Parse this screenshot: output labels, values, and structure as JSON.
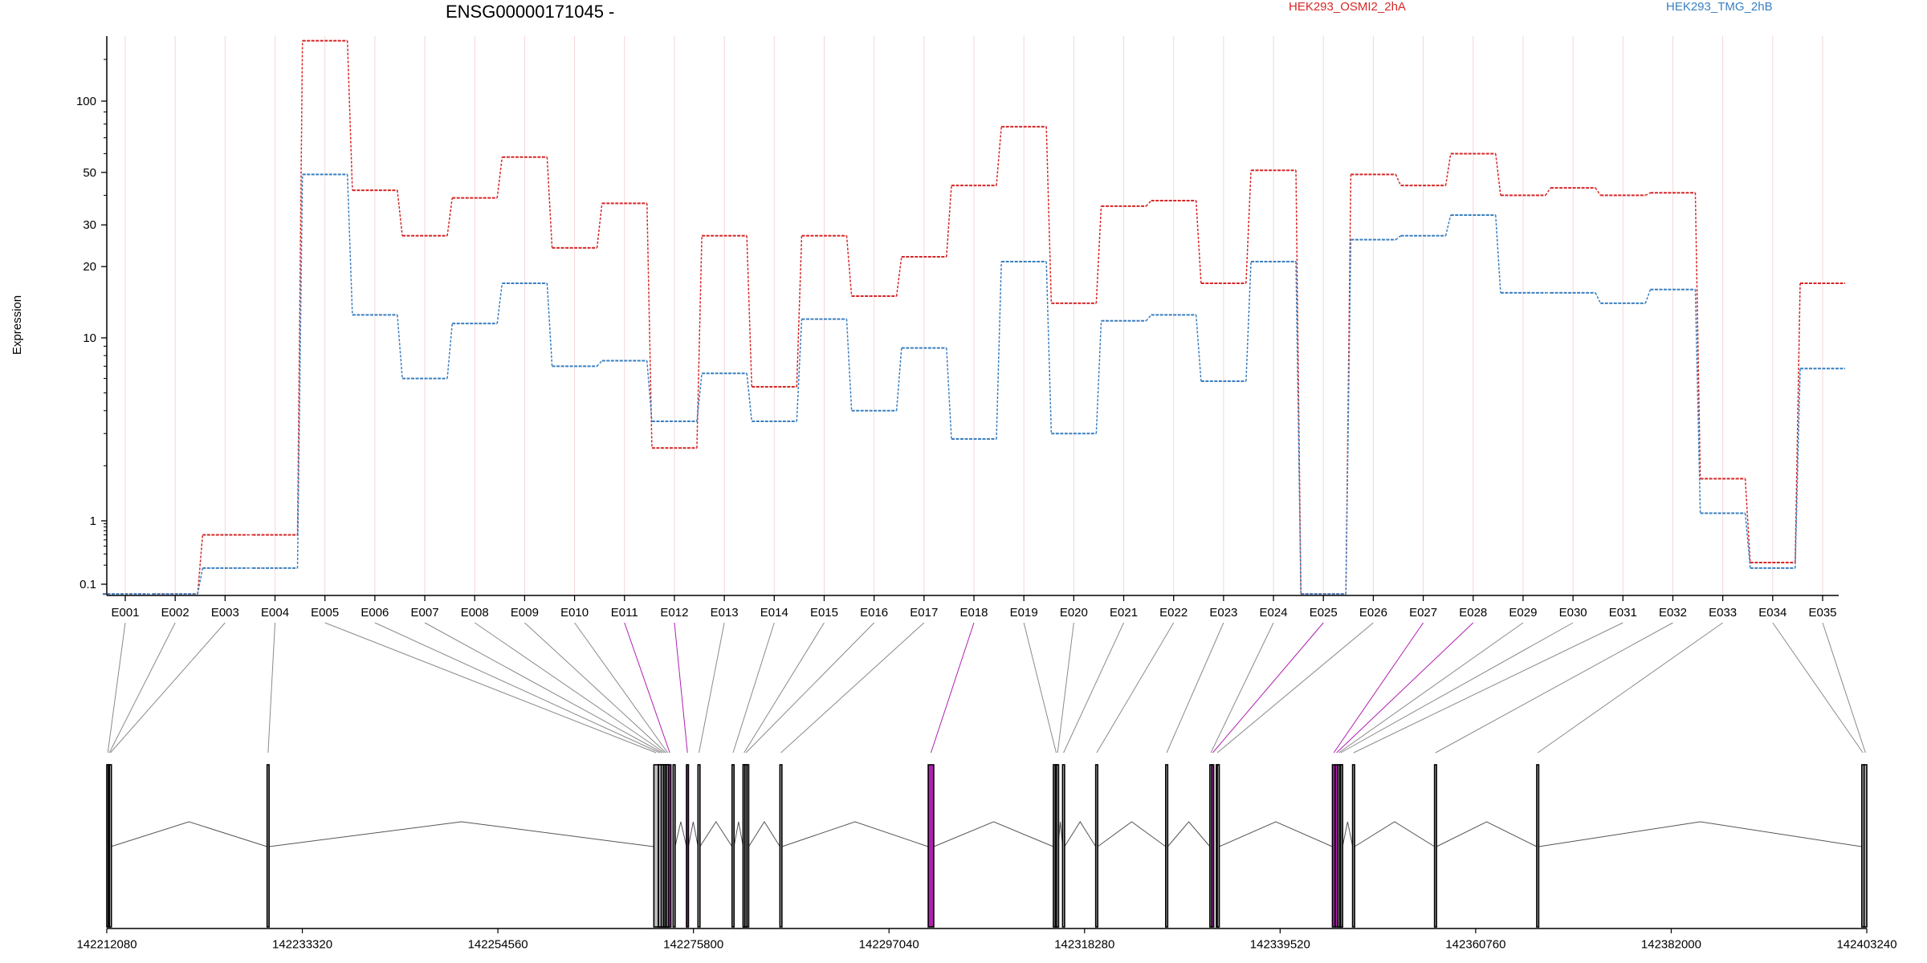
{
  "chart_data": {
    "type": "line",
    "title": "ENSG00000171045 -",
    "ylabel": "Expression",
    "yscale": "log",
    "yticks": [
      "0.1",
      "1",
      "10",
      "20",
      "30",
      "50",
      "100"
    ],
    "categories": [
      "E001",
      "E002",
      "E003",
      "E004",
      "E005",
      "E006",
      "E007",
      "E008",
      "E009",
      "E010",
      "E011",
      "E012",
      "E013",
      "E014",
      "E015",
      "E016",
      "E017",
      "E018",
      "E019",
      "E020",
      "E021",
      "E022",
      "E023",
      "E024",
      "E025",
      "E026",
      "E027",
      "E028",
      "E029",
      "E030",
      "E031",
      "E032",
      "E033",
      "E034",
      "E035"
    ],
    "series": [
      {
        "name": "HEK293_OSMI2_2hA",
        "color": "#d62728",
        "values": [
          0.07,
          0.07,
          0.6,
          0.6,
          180,
          42,
          27,
          39,
          58,
          24,
          37,
          2.5,
          27,
          5.4,
          27,
          15,
          22,
          44,
          78,
          14,
          36,
          38,
          17,
          51,
          0.07,
          49,
          44,
          60,
          40,
          43,
          40,
          41,
          1.7,
          0.22,
          17
        ]
      },
      {
        "name": "HEK293_TMG_2hB",
        "color": "#3a7fc0",
        "values": [
          0.07,
          0.07,
          0.18,
          0.18,
          49,
          12.5,
          6,
          11.5,
          17,
          7,
          7.5,
          3.5,
          6.4,
          3.5,
          12,
          4,
          8.8,
          2.8,
          21,
          3,
          11.8,
          12.5,
          5.8,
          21,
          0.07,
          26,
          27,
          33,
          15.5,
          15.5,
          14,
          16,
          1.1,
          0.18,
          6.8
        ]
      }
    ],
    "genomic_axis": {
      "tick_labels": [
        "142212080",
        "142233320",
        "142254560",
        "142275800",
        "142297040",
        "142318280",
        "142339520",
        "142360760",
        "142382000",
        "142403240"
      ],
      "start": 142212080,
      "end": 142403240
    },
    "exons": [
      {
        "id": "E001",
        "start": 142212080,
        "end": 142212300,
        "highlight": false
      },
      {
        "id": "E002",
        "start": 142212300,
        "end": 142212420,
        "highlight": false
      },
      {
        "id": "E003",
        "start": 142212420,
        "end": 142212520,
        "highlight": false
      },
      {
        "id": "E004",
        "start": 142229500,
        "end": 142229700,
        "highlight": false
      },
      {
        "id": "E005",
        "start": 142271500,
        "end": 142272000,
        "highlight": false
      },
      {
        "id": "E006",
        "start": 142272000,
        "end": 142272300,
        "highlight": false
      },
      {
        "id": "E007",
        "start": 142272300,
        "end": 142272550,
        "highlight": false
      },
      {
        "id": "E008",
        "start": 142272550,
        "end": 142272750,
        "highlight": false
      },
      {
        "id": "E009",
        "start": 142272750,
        "end": 142272900,
        "highlight": false
      },
      {
        "id": "E010",
        "start": 142272900,
        "end": 142273100,
        "highlight": false
      },
      {
        "id": "E011",
        "start": 142273100,
        "end": 142273350,
        "highlight": true
      },
      {
        "id": "E012",
        "start": 142275050,
        "end": 142275250,
        "highlight": true
      },
      {
        "id": "E013",
        "start": 142276300,
        "end": 142276500,
        "highlight": false
      },
      {
        "id": "E014",
        "start": 142280000,
        "end": 142280200,
        "highlight": false
      },
      {
        "id": "E015",
        "start": 142281200,
        "end": 142281400,
        "highlight": false
      },
      {
        "id": "E016",
        "start": 142281400,
        "end": 142281600,
        "highlight": false
      },
      {
        "id": "E017",
        "start": 142285200,
        "end": 142285400,
        "highlight": false
      },
      {
        "id": "E018",
        "start": 142301300,
        "end": 142301900,
        "highlight": true
      },
      {
        "id": "E019",
        "start": 142315100,
        "end": 142315300,
        "highlight": false
      },
      {
        "id": "E020",
        "start": 142315300,
        "end": 142315400,
        "highlight": false
      },
      {
        "id": "E021",
        "start": 142315900,
        "end": 142316100,
        "highlight": false
      },
      {
        "id": "E022",
        "start": 142319500,
        "end": 142319700,
        "highlight": false
      },
      {
        "id": "E023",
        "start": 142327100,
        "end": 142327300,
        "highlight": false
      },
      {
        "id": "E024",
        "start": 142331900,
        "end": 142332100,
        "highlight": false
      },
      {
        "id": "E025",
        "start": 142332100,
        "end": 142332300,
        "highlight": true
      },
      {
        "id": "E026",
        "start": 142332600,
        "end": 142332800,
        "highlight": false
      },
      {
        "id": "E027",
        "start": 142345200,
        "end": 142345500,
        "highlight": true
      },
      {
        "id": "E028",
        "start": 142345500,
        "end": 142345800,
        "highlight": true
      },
      {
        "id": "E029",
        "start": 142345800,
        "end": 142346000,
        "highlight": false
      },
      {
        "id": "E030",
        "start": 142346000,
        "end": 142346200,
        "highlight": false
      },
      {
        "id": "E031",
        "start": 142347400,
        "end": 142347600,
        "highlight": false
      },
      {
        "id": "E032",
        "start": 142356300,
        "end": 142356500,
        "highlight": false
      },
      {
        "id": "E033",
        "start": 142367400,
        "end": 142367600,
        "highlight": false
      },
      {
        "id": "E034",
        "start": 142402700,
        "end": 142402950,
        "highlight": false
      },
      {
        "id": "E035",
        "start": 142402950,
        "end": 142403240,
        "highlight": false
      }
    ],
    "extra_exons": [
      {
        "start": 142272000,
        "end": 142273000
      },
      {
        "start": 142273600,
        "end": 142273800
      },
      {
        "start": 142281200,
        "end": 142281800
      },
      {
        "start": 142314900,
        "end": 142315100
      },
      {
        "start": 142332700,
        "end": 142332900
      },
      {
        "start": 142346100,
        "end": 142346300
      }
    ],
    "colors": {
      "highlight": "#b01fb0",
      "gridline": "#f3d7d7",
      "connector": "#8a8a8a"
    }
  }
}
